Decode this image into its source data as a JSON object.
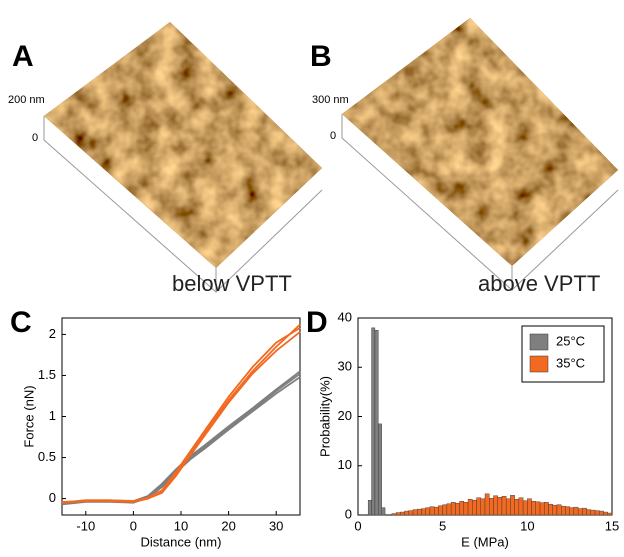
{
  "images": [
    {
      "label": "A",
      "scale_top": "200 nm",
      "scale_bottom": "0",
      "caption": "below VPTT"
    },
    {
      "label": "B",
      "scale_top": "300 nm",
      "scale_bottom": "0",
      "caption": "above VPTT"
    }
  ],
  "chart_data": [
    {
      "type": "line",
      "label": "C",
      "x_label": "Distance (nm)",
      "y_label": "Force (nN)",
      "xlim": [
        -15,
        35
      ],
      "xticks": [
        -10,
        0,
        10,
        20,
        30
      ],
      "ylim": [
        -0.2,
        2.2
      ],
      "yticks": [
        0,
        0.5,
        1,
        1.5,
        2
      ],
      "x": [
        -15,
        -10,
        -5,
        0,
        3,
        6,
        9,
        12,
        15,
        20,
        25,
        30,
        35
      ],
      "series": [
        {
          "color": "#7f7f7f",
          "values": [
            -0.06,
            -0.03,
            -0.03,
            -0.04,
            0.02,
            0.16,
            0.34,
            0.5,
            0.63,
            0.86,
            1.08,
            1.31,
            1.52
          ]
        },
        {
          "color": "#7f7f7f",
          "values": [
            -0.05,
            -0.02,
            -0.02,
            -0.03,
            0.03,
            0.18,
            0.36,
            0.52,
            0.65,
            0.88,
            1.1,
            1.33,
            1.55
          ]
        },
        {
          "color": "#7f7f7f",
          "values": [
            -0.07,
            -0.04,
            -0.04,
            -0.05,
            0.01,
            0.14,
            0.32,
            0.48,
            0.61,
            0.84,
            1.06,
            1.28,
            1.48
          ]
        },
        {
          "color": "#f26a21",
          "values": [
            -0.04,
            -0.03,
            -0.03,
            -0.04,
            0.0,
            0.08,
            0.3,
            0.55,
            0.8,
            1.2,
            1.55,
            1.85,
            2.12
          ]
        },
        {
          "color": "#f26a21",
          "values": [
            -0.05,
            -0.02,
            -0.02,
            -0.03,
            0.01,
            0.1,
            0.33,
            0.58,
            0.83,
            1.24,
            1.6,
            1.9,
            2.08
          ]
        },
        {
          "color": "#f26a21",
          "values": [
            -0.05,
            -0.03,
            -0.03,
            -0.04,
            0.0,
            0.07,
            0.28,
            0.53,
            0.77,
            1.17,
            1.52,
            1.8,
            2.03
          ]
        }
      ]
    },
    {
      "type": "histogram",
      "label": "D",
      "x_label": "E (MPa)",
      "y_label": "Probability(%)",
      "xlim": [
        0,
        15
      ],
      "xticks": [
        0,
        5,
        10,
        15
      ],
      "ylim": [
        0,
        40
      ],
      "yticks": [
        0,
        10,
        20,
        30,
        40
      ],
      "legend": "upper right",
      "series": [
        {
          "name": "25°C",
          "color": "#7f7f7f",
          "bins": [
            0.6,
            0.8,
            1.0,
            1.2,
            1.4,
            1.6
          ],
          "values": [
            3,
            38,
            37.5,
            18.5,
            1.5
          ]
        },
        {
          "name": "35°C",
          "color": "#f26a21",
          "bins": [
            2,
            2.25,
            2.5,
            2.75,
            3,
            3.25,
            3.5,
            3.75,
            4,
            4.25,
            4.5,
            4.75,
            5,
            5.25,
            5.5,
            5.75,
            6,
            6.25,
            6.5,
            6.75,
            7,
            7.25,
            7.5,
            7.75,
            8,
            8.25,
            8.5,
            8.75,
            9,
            9.25,
            9.5,
            9.75,
            10,
            10.25,
            10.5,
            10.75,
            11,
            11.25,
            11.5,
            11.75,
            12,
            12.25,
            12.5,
            12.75,
            13,
            13.25,
            13.5,
            13.75,
            14,
            14.25,
            14.5,
            14.75,
            15
          ],
          "values": [
            0.3,
            0.5,
            0.6,
            0.8,
            0.9,
            1.1,
            1.2,
            1.3,
            1.5,
            1.7,
            1.6,
            1.9,
            2.1,
            2.3,
            2.6,
            2.4,
            2.8,
            2.6,
            3.2,
            3.0,
            3.5,
            3.3,
            4.3,
            3.4,
            3.9,
            3.6,
            3.8,
            3.3,
            4.0,
            3.2,
            3.5,
            2.9,
            3.3,
            2.8,
            2.7,
            2.5,
            2.6,
            2.2,
            2.0,
            2.1,
            1.8,
            1.7,
            1.5,
            1.6,
            1.3,
            1.4,
            1.1,
            1.0,
            0.9,
            0.8,
            0.6,
            0.4
          ]
        }
      ]
    }
  ]
}
